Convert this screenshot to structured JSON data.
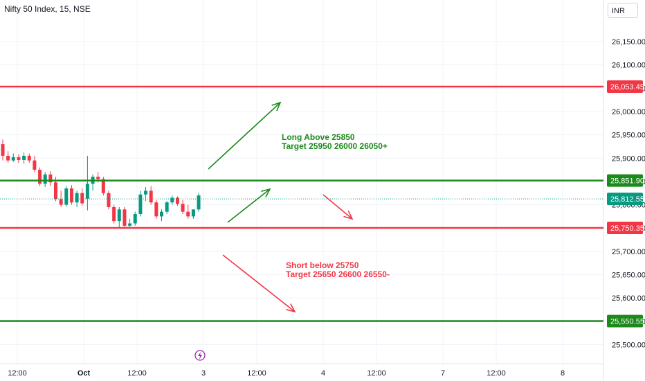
{
  "header": {
    "symbol_title": "Nifty 50 Index, 15, NSE",
    "currency": "INR"
  },
  "colors": {
    "bull": "#089981",
    "bear": "#f23645",
    "support": "#1b8a1b",
    "resistance": "#f23645",
    "last_price_line": "#089981",
    "grid": "#f0f3fa",
    "axis_text": "#131722"
  },
  "chart_data": {
    "type": "candlestick",
    "instrument": "Nifty 50 Index",
    "timeframe": "15",
    "exchange": "NSE",
    "y_axis": {
      "ylim": [
        25475,
        26210
      ],
      "ticks": [
        "25,500.00",
        "25,550.00",
        "25,600.00",
        "25,650.00",
        "25,700.00",
        "25,750.00",
        "25,800.00",
        "25,850.00",
        "25,900.00",
        "25,950.00",
        "26,000.00",
        "26,050.00",
        "26,100.00",
        "26,150.00"
      ]
    },
    "x_axis": {
      "ticks": [
        "12:00",
        "Oct",
        "12:00",
        "3",
        "12:00",
        "4",
        "12:00",
        "7",
        "12:00",
        "8"
      ]
    },
    "candles": [
      {
        "o": 25930,
        "h": 25940,
        "l": 25895,
        "c": 25905
      },
      {
        "o": 25905,
        "h": 25915,
        "l": 25890,
        "c": 25895
      },
      {
        "o": 25895,
        "h": 25910,
        "l": 25892,
        "c": 25902
      },
      {
        "o": 25902,
        "h": 25908,
        "l": 25890,
        "c": 25896
      },
      {
        "o": 25896,
        "h": 25912,
        "l": 25888,
        "c": 25905
      },
      {
        "o": 25905,
        "h": 25910,
        "l": 25890,
        "c": 25895
      },
      {
        "o": 25895,
        "h": 25905,
        "l": 25870,
        "c": 25875
      },
      {
        "o": 25875,
        "h": 25880,
        "l": 25840,
        "c": 25845
      },
      {
        "o": 25845,
        "h": 25870,
        "l": 25838,
        "c": 25865
      },
      {
        "o": 25865,
        "h": 25872,
        "l": 25840,
        "c": 25848
      },
      {
        "o": 25848,
        "h": 25860,
        "l": 25808,
        "c": 25812
      },
      {
        "o": 25812,
        "h": 25830,
        "l": 25795,
        "c": 25800
      },
      {
        "o": 25800,
        "h": 25840,
        "l": 25796,
        "c": 25835
      },
      {
        "o": 25835,
        "h": 25842,
        "l": 25800,
        "c": 25805
      },
      {
        "o": 25805,
        "h": 25830,
        "l": 25795,
        "c": 25825
      },
      {
        "o": 25825,
        "h": 25835,
        "l": 25798,
        "c": 25803
      },
      {
        "o": 25813,
        "h": 25905,
        "l": 25788,
        "c": 25845
      },
      {
        "o": 25845,
        "h": 25865,
        "l": 25830,
        "c": 25860
      },
      {
        "o": 25860,
        "h": 25870,
        "l": 25848,
        "c": 25855
      },
      {
        "o": 25855,
        "h": 25860,
        "l": 25820,
        "c": 25825
      },
      {
        "o": 25825,
        "h": 25830,
        "l": 25790,
        "c": 25795
      },
      {
        "o": 25795,
        "h": 25800,
        "l": 25760,
        "c": 25765
      },
      {
        "o": 25765,
        "h": 25795,
        "l": 25750,
        "c": 25790
      },
      {
        "o": 25790,
        "h": 25795,
        "l": 25750,
        "c": 25755
      },
      {
        "o": 25755,
        "h": 25770,
        "l": 25750,
        "c": 25760
      },
      {
        "o": 25760,
        "h": 25785,
        "l": 25755,
        "c": 25780
      },
      {
        "o": 25780,
        "h": 25830,
        "l": 25775,
        "c": 25822
      },
      {
        "o": 25822,
        "h": 25838,
        "l": 25808,
        "c": 25830
      },
      {
        "o": 25830,
        "h": 25840,
        "l": 25800,
        "c": 25805
      },
      {
        "o": 25805,
        "h": 25810,
        "l": 25770,
        "c": 25775
      },
      {
        "o": 25775,
        "h": 25790,
        "l": 25765,
        "c": 25785
      },
      {
        "o": 25785,
        "h": 25808,
        "l": 25780,
        "c": 25805
      },
      {
        "o": 25805,
        "h": 25820,
        "l": 25800,
        "c": 25815
      },
      {
        "o": 25815,
        "h": 25818,
        "l": 25798,
        "c": 25802
      },
      {
        "o": 25802,
        "h": 25810,
        "l": 25780,
        "c": 25785
      },
      {
        "o": 25785,
        "h": 25800,
        "l": 25770,
        "c": 25775
      },
      {
        "o": 25775,
        "h": 25790,
        "l": 25770,
        "c": 25790
      },
      {
        "o": 25790,
        "h": 25825,
        "l": 25785,
        "c": 25820
      }
    ],
    "levels": [
      {
        "name": "resistance-high",
        "value": 26053.45,
        "label": "26,053.45",
        "color": "#f23645"
      },
      {
        "name": "long-trigger",
        "value": 25851.9,
        "label": "25,851.90",
        "color": "#1b8a1b"
      },
      {
        "name": "short-trigger",
        "value": 25750.35,
        "label": "25,750.35",
        "color": "#f23645"
      },
      {
        "name": "support-low",
        "value": 25550.55,
        "label": "25,550.55",
        "color": "#1b8a1b"
      }
    ],
    "last_price": {
      "value": 25812.55,
      "label": "25,812.55"
    },
    "annotations": [
      {
        "lines": [
          "Long Above 25850",
          "Target 25950 26000 26050+"
        ],
        "color": "#1b8a1b"
      },
      {
        "lines": [
          "Short below 25750",
          "Target 25650 26600 26550-"
        ],
        "color": "#f23645"
      }
    ]
  }
}
